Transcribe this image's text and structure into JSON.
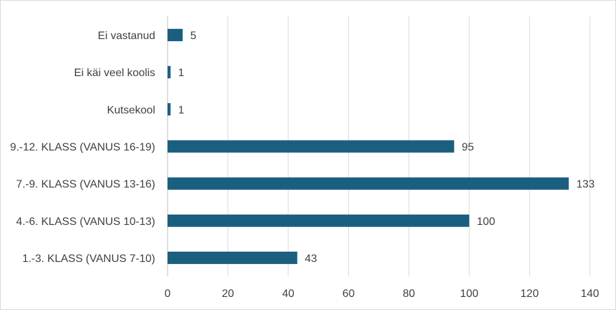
{
  "chart_data": {
    "type": "bar",
    "orientation": "horizontal",
    "categories": [
      "Ei vastanud",
      "Ei käi veel koolis",
      "Kutsekool",
      "9.-12. KLASS (VANUS 16-19)",
      "7.-9. KLASS (VANUS 13-16)",
      "4.-6. KLASS (VANUS 10-13)",
      "1.-3. KLASS (VANUS 7-10)"
    ],
    "values": [
      5,
      1,
      1,
      95,
      133,
      100,
      43
    ],
    "xlim": [
      0,
      140
    ],
    "x_ticks": [
      0,
      20,
      40,
      60,
      80,
      100,
      120,
      140
    ],
    "grid": "vertical",
    "bar_color": "#1a5f80",
    "title": "",
    "xlabel": "",
    "ylabel": ""
  }
}
